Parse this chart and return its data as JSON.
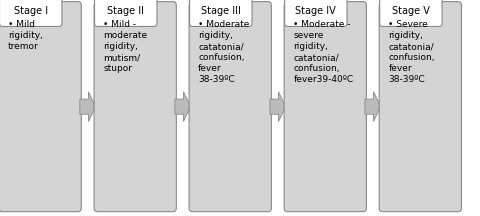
{
  "stages": [
    {
      "title": "Stage I",
      "body": "• Mild\nrigidity,\ntremor"
    },
    {
      "title": "Stage II",
      "body": "• Mild -\nmoderate\nrigidity,\nmutism/\nstupor"
    },
    {
      "title": "Stage III",
      "body": "• Moderate\nrigidity,\ncatatonia/\nconfusion,\nfever\n38-39ºC"
    },
    {
      "title": "Stage IV",
      "body": "• Moderate -\nsevere\nrigidity,\ncatatonia/\nconfusion,\nfever39-40ºC"
    },
    {
      "title": "Stage V",
      "body": "• Severe\nrigidity,\ncatatonia/\nconfusion,\nfever\n38-39ºC"
    }
  ],
  "box_color": "#d4d4d4",
  "box_edge_color": "#888888",
  "tab_color": "#ffffff",
  "tab_edge_color": "#888888",
  "arrow_color": "#bbbbbb",
  "arrow_edge_color": "#888888",
  "title_fontsize": 7.0,
  "body_fontsize": 6.5,
  "background_color": "#ffffff",
  "fig_width": 4.8,
  "fig_height": 2.16,
  "dpi": 100
}
